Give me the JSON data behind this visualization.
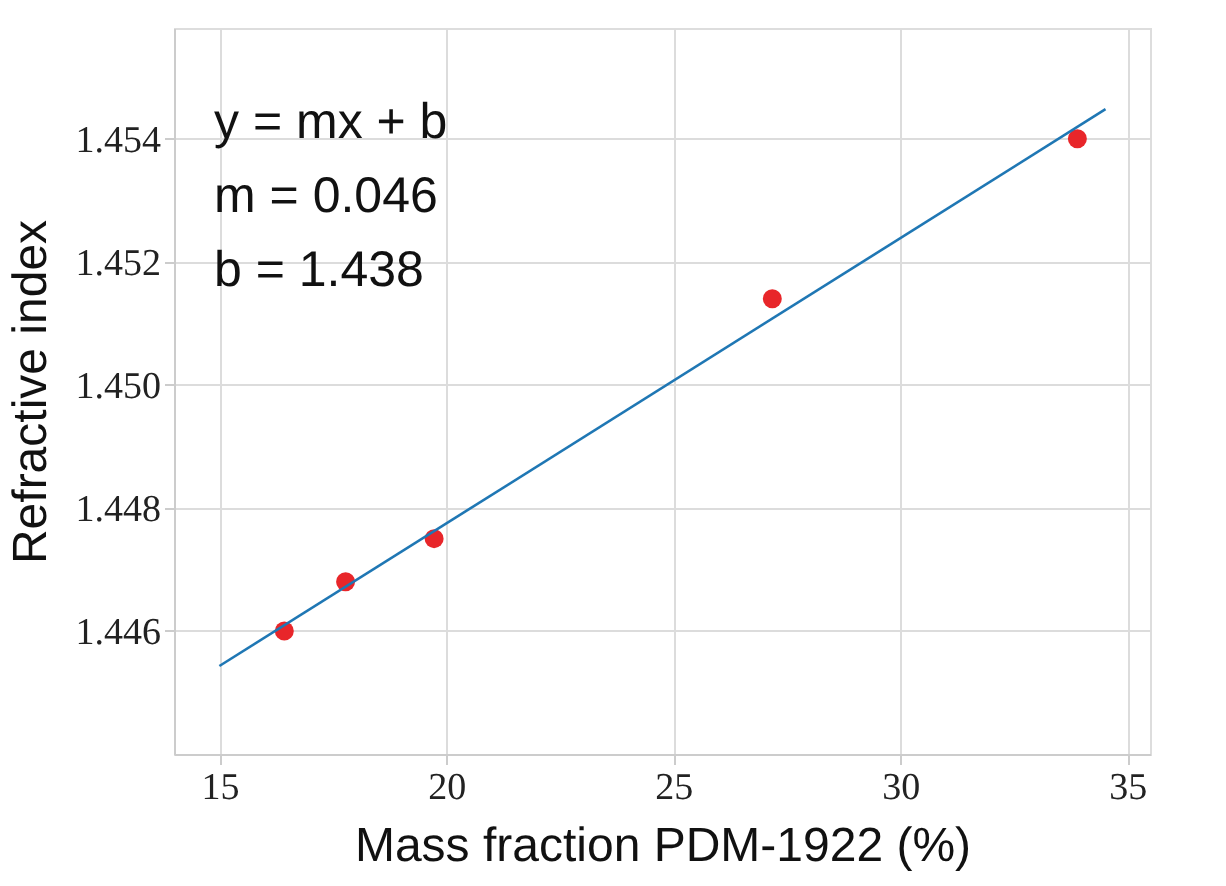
{
  "chart_data": {
    "type": "scatter",
    "xlabel": "Mass fraction PDM-1922 (%)",
    "ylabel": "Refractive index",
    "series": [
      {
        "color": "#e8262a",
        "x": [
          16.43,
          17.78,
          19.73,
          27.18,
          33.9
        ],
        "values": [
          1.446,
          1.4468,
          1.4475,
          1.4514,
          1.454
        ],
        "marker": "circle"
      },
      {
        "type": "line",
        "color": "#1f77b4",
        "x": [
          15,
          34.52
        ],
        "values": [
          1.44543,
          1.45448
        ],
        "line_style": "solid"
      }
    ],
    "annotations": [
      "y  = mx + b",
      "m = 0.046",
      "b  = 1.438"
    ],
    "xlim": [
      14,
      35.5
    ],
    "xticks": [
      15,
      20,
      25,
      30,
      35
    ],
    "ylim": [
      1.444,
      1.4558
    ],
    "yticks": [
      {
        "value": 1.446,
        "label": "1.446"
      },
      {
        "value": 1.448,
        "label": "1.448"
      },
      {
        "value": 1.45,
        "label": "1.450"
      },
      {
        "value": 1.452,
        "label": "1.452"
      },
      {
        "value": 1.454,
        "label": "1.454"
      }
    ],
    "grid": true
  }
}
